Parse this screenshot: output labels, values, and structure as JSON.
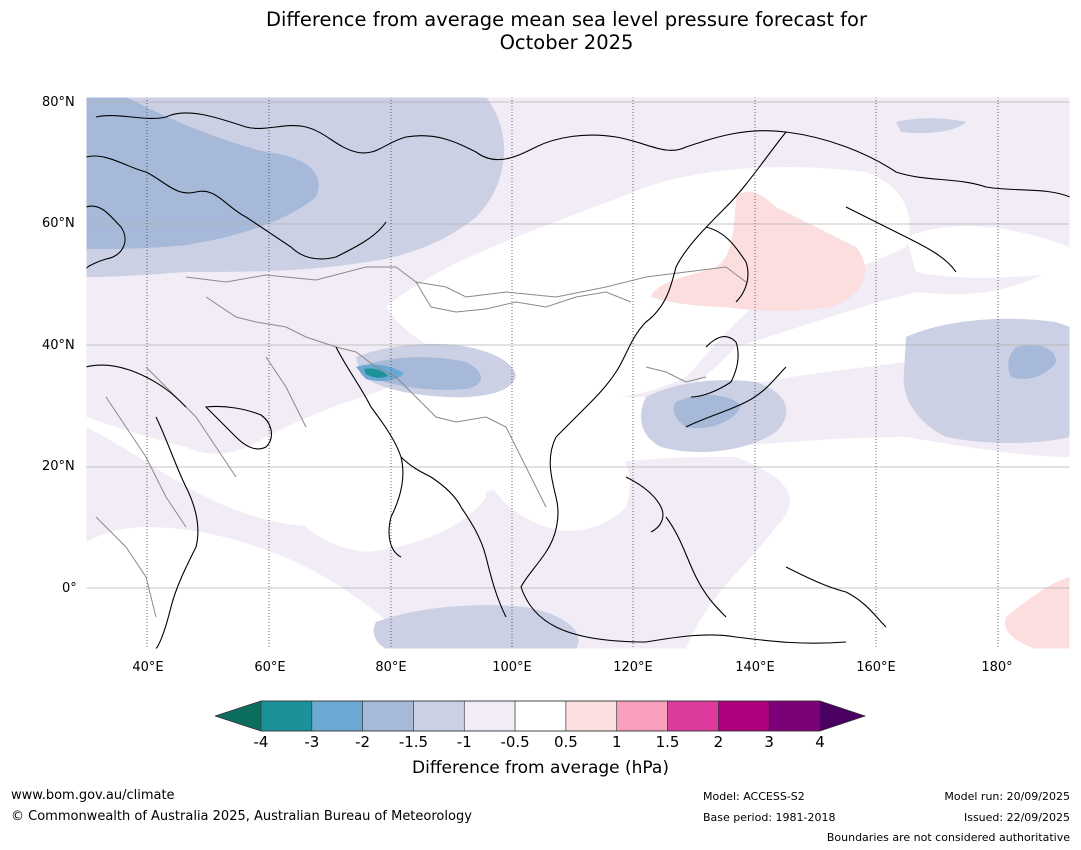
{
  "title": {
    "line1": "Difference from average mean sea level pressure forecast for",
    "line2": "October 2025"
  },
  "map": {
    "lat_labels": [
      "80°N",
      "60°N",
      "40°N",
      "20°N",
      "0°"
    ],
    "lon_labels": [
      "40°E",
      "60°E",
      "80°E",
      "100°E",
      "120°E",
      "140°E",
      "160°E",
      "180°"
    ],
    "extent": {
      "lon_min": 30,
      "lon_max": 191,
      "lat_min": -10,
      "lat_max": 81
    }
  },
  "colorbar": {
    "ticks": [
      "-4",
      "-3",
      "-2",
      "-1.5",
      "-1",
      "-0.5",
      "0.5",
      "1",
      "1.5",
      "2",
      "3",
      "4"
    ],
    "under_color": "#0b6e5d",
    "over_color": "#4b0064",
    "colors": [
      "#1c9199",
      "#6ba9d2",
      "#a6b9d9",
      "#ccd0e4",
      "#f1ecf5",
      "#ffffff",
      "#fcdede",
      "#f8a0bb",
      "#dc3a9c",
      "#ad017e",
      "#7a0178"
    ],
    "label": "Difference from average (hPa)"
  },
  "footer": {
    "website": "www.bom.gov.au/climate",
    "copyright": "© Commonwealth of Australia 2025, Australian Bureau of Meteorology",
    "model": "Model: ACCESS-S2",
    "base_period": "Base period: 1981-2018",
    "model_run": "Model run: 20/09/2025",
    "issued": "Issued: 22/09/2025",
    "disclaimer": "Boundaries are not considered authoritative"
  }
}
